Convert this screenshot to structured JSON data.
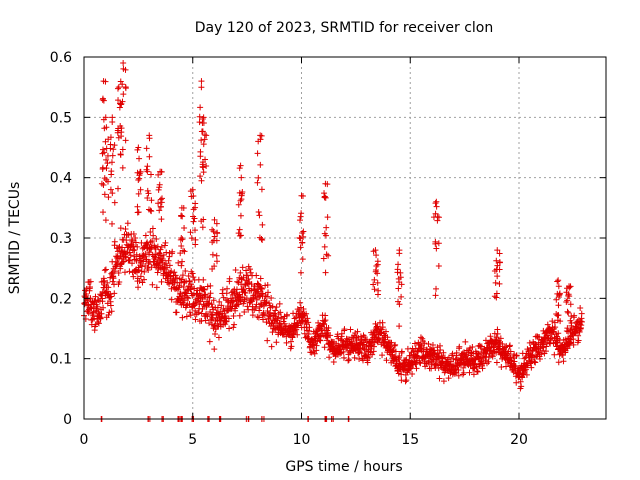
{
  "chart_data": {
    "type": "scatter",
    "title": "Day 120 of 2023, SRMTID for receiver clon",
    "xlabel": "GPS time / hours",
    "ylabel": "SRMTID / TECUs",
    "xlim": [
      0,
      24
    ],
    "ylim": [
      0,
      0.6
    ],
    "xticks": [
      0,
      5,
      10,
      15,
      20
    ],
    "xtick_labels": [
      "0",
      "5",
      "10",
      "15",
      "20"
    ],
    "yticks": [
      0,
      0.1,
      0.2,
      0.3,
      0.4,
      0.5,
      0.6
    ],
    "ytick_labels": [
      "0",
      "0.1",
      "0.2",
      "0.3",
      "0.4",
      "0.5",
      "0.6"
    ],
    "grid": true,
    "marker": "plus",
    "color": "#e00000",
    "series": [
      {
        "name": "SRMTID",
        "trend": [
          [
            0.0,
            0.19
          ],
          [
            0.3,
            0.21
          ],
          [
            0.6,
            0.17
          ],
          [
            0.9,
            0.22
          ],
          [
            1.2,
            0.2
          ],
          [
            1.5,
            0.26
          ],
          [
            2.0,
            0.28
          ],
          [
            2.5,
            0.25
          ],
          [
            3.0,
            0.27
          ],
          [
            3.5,
            0.26
          ],
          [
            4.0,
            0.23
          ],
          [
            4.5,
            0.2
          ],
          [
            5.0,
            0.2
          ],
          [
            5.5,
            0.19
          ],
          [
            6.0,
            0.16
          ],
          [
            6.5,
            0.17
          ],
          [
            7.0,
            0.2
          ],
          [
            7.5,
            0.21
          ],
          [
            8.0,
            0.2
          ],
          [
            8.5,
            0.17
          ],
          [
            9.0,
            0.15
          ],
          [
            9.5,
            0.14
          ],
          [
            10.0,
            0.17
          ],
          [
            10.5,
            0.12
          ],
          [
            11.0,
            0.15
          ],
          [
            11.5,
            0.11
          ],
          [
            12.0,
            0.12
          ],
          [
            12.5,
            0.12
          ],
          [
            13.0,
            0.11
          ],
          [
            13.5,
            0.14
          ],
          [
            14.0,
            0.12
          ],
          [
            14.5,
            0.08
          ],
          [
            15.0,
            0.09
          ],
          [
            15.5,
            0.11
          ],
          [
            16.0,
            0.1
          ],
          [
            16.5,
            0.09
          ],
          [
            17.0,
            0.08
          ],
          [
            17.5,
            0.1
          ],
          [
            18.0,
            0.09
          ],
          [
            18.5,
            0.11
          ],
          [
            19.0,
            0.12
          ],
          [
            19.5,
            0.1
          ],
          [
            20.0,
            0.07
          ],
          [
            20.5,
            0.1
          ],
          [
            21.0,
            0.12
          ],
          [
            21.5,
            0.14
          ],
          [
            22.0,
            0.11
          ],
          [
            22.5,
            0.14
          ],
          [
            22.9,
            0.16
          ]
        ],
        "spikes": [
          [
            0.9,
            0.56
          ],
          [
            1.0,
            0.5
          ],
          [
            1.3,
            0.5
          ],
          [
            1.6,
            0.55
          ],
          [
            1.8,
            0.59
          ],
          [
            2.5,
            0.45
          ],
          [
            3.0,
            0.47
          ],
          [
            3.5,
            0.41
          ],
          [
            4.5,
            0.35
          ],
          [
            5.0,
            0.38
          ],
          [
            5.4,
            0.56
          ],
          [
            5.5,
            0.5
          ],
          [
            6.0,
            0.33
          ],
          [
            7.2,
            0.42
          ],
          [
            8.1,
            0.47
          ],
          [
            10.0,
            0.37
          ],
          [
            11.1,
            0.39
          ],
          [
            13.4,
            0.28
          ],
          [
            14.5,
            0.28
          ],
          [
            16.2,
            0.36
          ],
          [
            19.0,
            0.28
          ],
          [
            21.8,
            0.23
          ],
          [
            22.3,
            0.22
          ]
        ],
        "zero_points": [
          0.8,
          3.0,
          3.6,
          4.3,
          4.5,
          5.0,
          5.7,
          6.3,
          7.5,
          8.2,
          10.3,
          11.1,
          11.4,
          12.2
        ]
      }
    ]
  }
}
